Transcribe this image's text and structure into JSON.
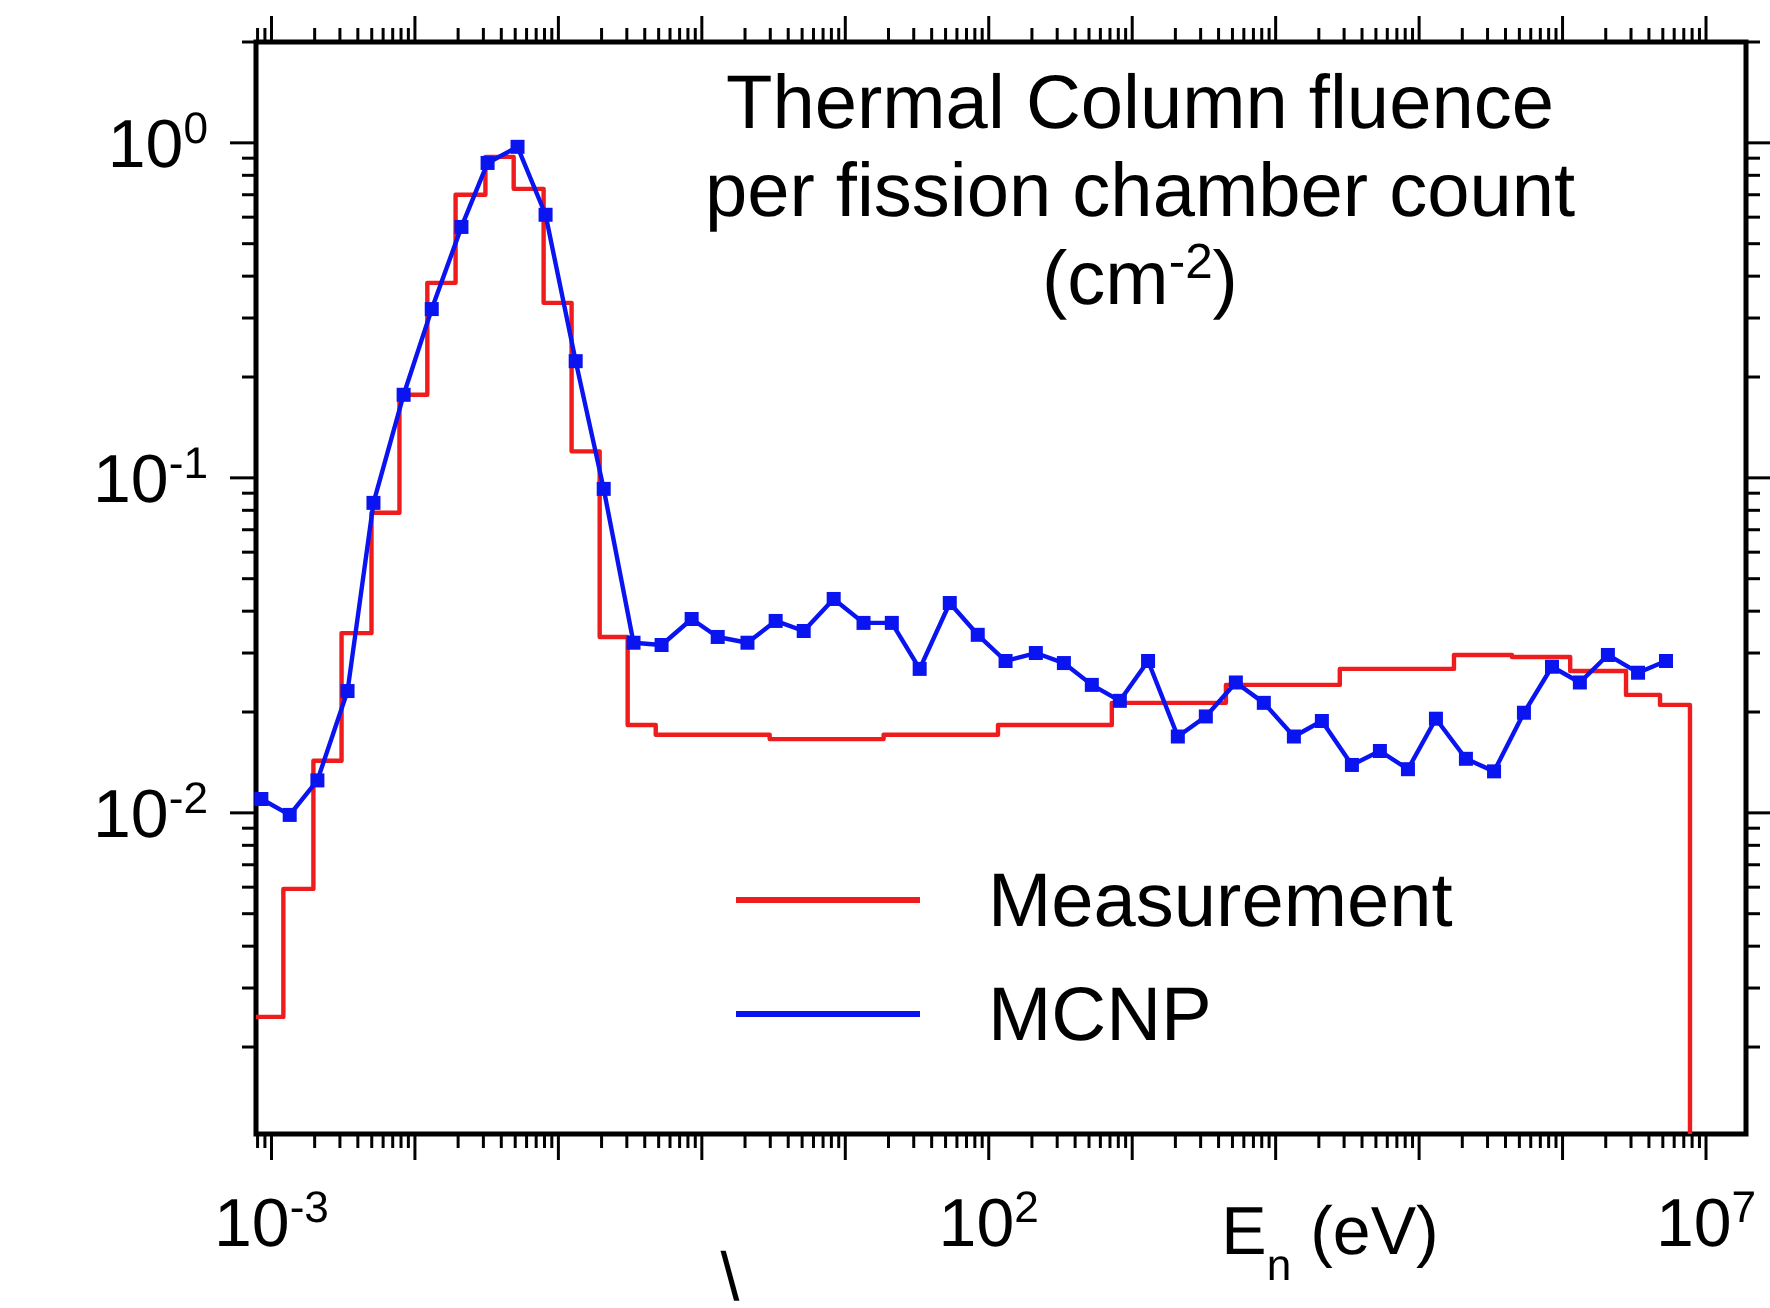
{
  "chart_data": {
    "type": "line",
    "title": "Thermal Column fluence\nper fission chamber count\n(cm$^{-2}$)",
    "xlabel": "E$_{n}$ (eV)",
    "annotations": [
      "\\"
    ],
    "log": "xy",
    "xlim": [
      0.00078,
      19000000
    ],
    "ylim": [
      0.0011,
      2
    ],
    "xticks": [
      {
        "value": 0.001,
        "label": "10$^{-3}$"
      },
      {
        "value": 0.01,
        "label": null
      },
      {
        "value": 0.1,
        "label": null
      },
      {
        "value": 1,
        "label": null
      },
      {
        "value": 10,
        "label": null
      },
      {
        "value": 100,
        "label": "10$^{2}$"
      },
      {
        "value": 1000,
        "label": null
      },
      {
        "value": 10000,
        "label": null
      },
      {
        "value": 100000,
        "label": null
      },
      {
        "value": 1000000,
        "label": null
      },
      {
        "value": 10000000,
        "label": "10$^{7}$"
      }
    ],
    "yticks": [
      {
        "value": 0.01,
        "label": "10$^{-2}$"
      },
      {
        "value": 0.1,
        "label": "10$^{-1}$"
      },
      {
        "value": 1,
        "label": "10$^{0}$"
      }
    ],
    "grid": false,
    "legend": "bottom right",
    "series": [
      {
        "name": "Measurement",
        "type": "step",
        "color": "#ee1c1c",
        "marker": "none",
        "x": [
          0.00078,
          0.00121,
          0.00196,
          0.00308,
          0.00498,
          0.0078,
          0.0122,
          0.0192,
          0.031,
          0.0488,
          0.0789,
          0.1236,
          0.194,
          0.304,
          0.477,
          2.97,
          18.5,
          116,
          721,
          4500,
          28000,
          175000,
          444000,
          1130000,
          2770000,
          4780000,
          7730000
        ],
        "values": [
          0.00246,
          0.00593,
          0.0143,
          0.0344,
          0.0787,
          0.177,
          0.382,
          0.7,
          0.908,
          0.729,
          0.333,
          0.12,
          0.0335,
          0.0183,
          0.0171,
          0.0166,
          0.0171,
          0.0183,
          0.0213,
          0.0241,
          0.0269,
          0.0296,
          0.0292,
          0.0265,
          0.0225,
          0.021,
          0.0011
        ]
      },
      {
        "name": "MCNP",
        "color": "#0a14f0",
        "marker": "square",
        "x": [
          0.00085,
          0.00134,
          0.00209,
          0.00339,
          0.00514,
          0.00834,
          0.0131,
          0.0211,
          0.0321,
          0.0519,
          0.0814,
          0.132,
          0.207,
          0.334,
          0.524,
          0.849,
          1.29,
          2.08,
          3.27,
          5.13,
          8.3,
          13.4,
          21.1,
          33.0,
          53.5,
          83.8,
          131,
          213,
          334,
          523,
          820,
          1290,
          2080,
          3260,
          5280,
          8270,
          13400,
          21000,
          34000,
          53300,
          83600,
          131000,
          212000,
          333000,
          538000,
          844000,
          1320000,
          2070000,
          3360000,
          5260000
        ],
        "values": [
          0.011,
          0.00986,
          0.0125,
          0.0231,
          0.0842,
          0.177,
          0.319,
          0.561,
          0.871,
          0.973,
          0.61,
          0.223,
          0.0927,
          0.0322,
          0.0317,
          0.0379,
          0.0335,
          0.0322,
          0.0374,
          0.0349,
          0.0435,
          0.0369,
          0.0369,
          0.0269,
          0.0423,
          0.034,
          0.0284,
          0.03,
          0.028,
          0.0241,
          0.0216,
          0.0284,
          0.0169,
          0.0194,
          0.0245,
          0.0213,
          0.0169,
          0.0188,
          0.0139,
          0.0153,
          0.0135,
          0.0191,
          0.0145,
          0.0133,
          0.0199,
          0.0273,
          0.0245,
          0.0296,
          0.0262,
          0.0284
        ]
      }
    ]
  }
}
